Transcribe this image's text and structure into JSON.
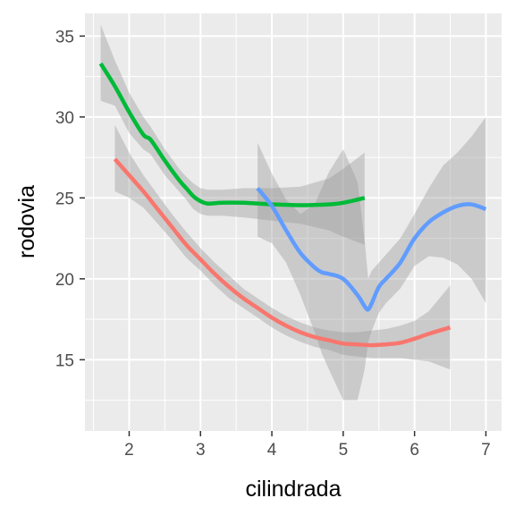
{
  "chart_data": {
    "type": "line",
    "xlabel": "cilindrada",
    "ylabel": "rodovia",
    "xlim": [
      1.38,
      7.22
    ],
    "ylim": [
      10.6,
      36.4
    ],
    "x_ticks": [
      2,
      3,
      4,
      5,
      6,
      7
    ],
    "y_ticks": [
      15,
      20,
      25,
      30,
      35
    ],
    "grid": true,
    "legend": "none",
    "colors": {
      "panel": "#ebebeb",
      "grid": "#ffffff",
      "band": "#999999"
    },
    "series": [
      {
        "color": "#f8766d",
        "x": [
          1.8,
          2.0,
          2.2,
          2.4,
          2.6,
          2.8,
          3.0,
          3.2,
          3.4,
          3.6,
          3.8,
          4.0,
          4.2,
          4.4,
          4.6,
          4.8,
          5.0,
          5.2,
          5.4,
          5.6,
          5.8,
          6.0,
          6.2,
          6.5
        ],
        "y": [
          27.4,
          26.4,
          25.4,
          24.3,
          23.2,
          22.1,
          21.2,
          20.3,
          19.5,
          18.8,
          18.2,
          17.6,
          17.1,
          16.7,
          16.4,
          16.2,
          16.0,
          15.95,
          15.9,
          15.95,
          16.05,
          16.3,
          16.6,
          17.0
        ],
        "band_upper": [
          29.5,
          27.8,
          26.4,
          25.2,
          24.0,
          22.9,
          21.9,
          21.0,
          20.2,
          19.4,
          18.8,
          18.2,
          17.7,
          17.3,
          17.0,
          16.8,
          16.7,
          16.7,
          16.8,
          16.9,
          17.1,
          17.4,
          18.0,
          19.6
        ],
        "band_lower": [
          25.4,
          25.0,
          24.4,
          23.4,
          22.4,
          21.3,
          20.5,
          19.6,
          18.8,
          18.2,
          17.6,
          17.0,
          16.5,
          16.1,
          15.8,
          15.6,
          15.3,
          15.2,
          15.1,
          15.1,
          15.1,
          15.0,
          14.9,
          14.4
        ]
      },
      {
        "color": "#00ba38",
        "x": [
          1.6,
          1.8,
          2.0,
          2.2,
          2.3,
          2.5,
          2.7,
          2.8,
          2.9,
          3.0,
          3.1,
          3.3,
          3.6,
          4.0,
          4.4,
          4.8,
          5.0,
          5.3
        ],
        "y": [
          33.3,
          31.9,
          30.3,
          28.9,
          28.6,
          27.3,
          26.1,
          25.6,
          25.1,
          24.8,
          24.65,
          24.7,
          24.7,
          24.6,
          24.55,
          24.6,
          24.7,
          25.0
        ],
        "band_upper": [
          35.7,
          33.5,
          31.5,
          30.0,
          29.4,
          28.0,
          26.8,
          26.3,
          25.9,
          25.6,
          25.5,
          25.5,
          25.6,
          25.6,
          25.7,
          26.2,
          26.8,
          27.8
        ],
        "band_lower": [
          31.0,
          30.7,
          29.0,
          28.0,
          27.7,
          26.4,
          25.4,
          24.9,
          24.3,
          24.0,
          23.9,
          23.9,
          23.8,
          23.6,
          23.4,
          23.0,
          22.6,
          22.1
        ]
      },
      {
        "color": "#619cff",
        "x": [
          3.8,
          4.0,
          4.2,
          4.4,
          4.6,
          4.7,
          4.8,
          5.0,
          5.2,
          5.3,
          5.35,
          5.4,
          5.5,
          5.6,
          5.8,
          6.0,
          6.2,
          6.4,
          6.6,
          6.8,
          7.0
        ],
        "y": [
          25.6,
          24.5,
          23.0,
          21.6,
          20.7,
          20.4,
          20.3,
          20.0,
          19.0,
          18.3,
          18.1,
          18.5,
          19.5,
          20.0,
          21.0,
          22.5,
          23.5,
          24.1,
          24.5,
          24.6,
          24.3
        ],
        "band_upper": [
          28.4,
          26.5,
          24.9,
          24.0,
          24.6,
          25.6,
          26.6,
          28.0,
          26.0,
          22.4,
          20.0,
          20.5,
          21.0,
          21.5,
          22.5,
          24.0,
          25.6,
          27.0,
          27.8,
          28.8,
          30.0
        ],
        "band_lower": [
          22.6,
          22.2,
          21.0,
          19.0,
          16.7,
          15.4,
          14.4,
          12.5,
          12.5,
          14.4,
          16.1,
          16.8,
          17.9,
          18.5,
          19.4,
          20.8,
          21.4,
          21.3,
          20.9,
          20.0,
          18.5
        ]
      }
    ]
  }
}
